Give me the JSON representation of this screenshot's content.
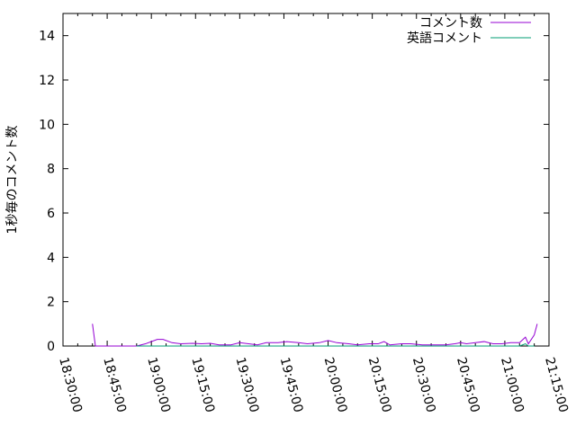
{
  "chart_data": {
    "type": "line",
    "title": "",
    "xlabel": "",
    "ylabel": "1秒毎のコメント数",
    "xlim": [
      "18:30:00",
      "21:15:00"
    ],
    "ylim": [
      0,
      15
    ],
    "x_ticks": [
      "18:30:00",
      "18:45:00",
      "19:00:00",
      "19:15:00",
      "19:30:00",
      "19:45:00",
      "20:00:00",
      "20:15:00",
      "20:30:00",
      "20:45:00",
      "21:00:00",
      "21:15:00"
    ],
    "y_ticks": [
      0,
      2,
      4,
      6,
      8,
      10,
      12,
      14
    ],
    "legend_placement": "top-right",
    "grid": false,
    "series": [
      {
        "name": "コメント数",
        "color": "#9400d3",
        "points": [
          [
            "18:40",
            1.0
          ],
          [
            "18:41",
            0
          ],
          [
            "18:45",
            0
          ],
          [
            "18:50",
            0
          ],
          [
            "18:55",
            0
          ],
          [
            "18:58",
            0.1
          ],
          [
            "19:02",
            0.3
          ],
          [
            "19:04",
            0.3
          ],
          [
            "19:07",
            0.15
          ],
          [
            "19:10",
            0.1
          ],
          [
            "19:14",
            0.12
          ],
          [
            "19:17",
            0.1
          ],
          [
            "19:20",
            0.12
          ],
          [
            "19:23",
            0.05
          ],
          [
            "19:27",
            0.05
          ],
          [
            "19:30",
            0.15
          ],
          [
            "19:33",
            0.1
          ],
          [
            "19:36",
            0.05
          ],
          [
            "19:39",
            0.15
          ],
          [
            "19:43",
            0.15
          ],
          [
            "19:46",
            0.2
          ],
          [
            "19:50",
            0.15
          ],
          [
            "19:53",
            0.1
          ],
          [
            "19:57",
            0.15
          ],
          [
            "20:00",
            0.25
          ],
          [
            "20:03",
            0.15
          ],
          [
            "20:07",
            0.1
          ],
          [
            "20:10",
            0.05
          ],
          [
            "20:14",
            0.1
          ],
          [
            "20:17",
            0.1
          ],
          [
            "20:19",
            0.2
          ],
          [
            "20:21",
            0.05
          ],
          [
            "20:25",
            0.1
          ],
          [
            "20:28",
            0.1
          ],
          [
            "20:32",
            0.05
          ],
          [
            "20:36",
            0.05
          ],
          [
            "20:40",
            0.05
          ],
          [
            "20:43",
            0.1
          ],
          [
            "20:45",
            0.15
          ],
          [
            "20:47",
            0.1
          ],
          [
            "20:50",
            0.15
          ],
          [
            "20:53",
            0.2
          ],
          [
            "20:56",
            0.1
          ],
          [
            "20:59",
            0.1
          ],
          [
            "21:02",
            0.15
          ],
          [
            "21:05",
            0.15
          ],
          [
            "21:07",
            0.4
          ],
          [
            "21:08",
            0.1
          ],
          [
            "21:10",
            0.5
          ],
          [
            "21:11",
            1.0
          ]
        ]
      },
      {
        "name": "英語コメント",
        "color": "#009e73",
        "points": [
          [
            "18:55",
            0
          ],
          [
            "19:30",
            0
          ],
          [
            "20:00",
            0
          ],
          [
            "20:30",
            0
          ],
          [
            "21:05",
            0
          ],
          [
            "21:07",
            0.1
          ],
          [
            "21:08",
            0
          ],
          [
            "21:10",
            0
          ]
        ]
      }
    ]
  }
}
